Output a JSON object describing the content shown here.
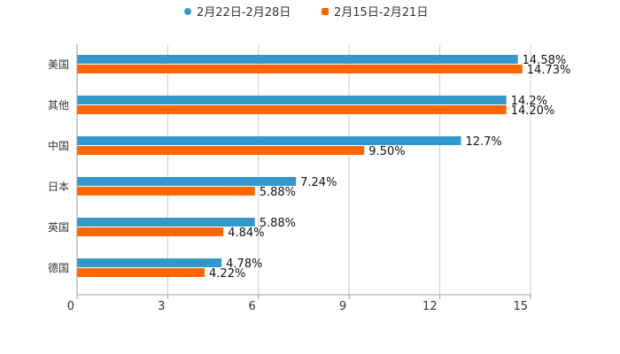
{
  "chart_data": {
    "type": "bar",
    "orientation": "horizontal",
    "categories": [
      "美国",
      "其他",
      "中国",
      "日本",
      "英国",
      "德国"
    ],
    "series": [
      {
        "name": "2月22日-2月28日",
        "color": "#3399cc",
        "values": [
          14.58,
          14.2,
          12.7,
          7.24,
          5.88,
          4.78
        ],
        "labels": [
          "14.58%",
          "14.2%",
          "12.7%",
          "7.24%",
          "5.88%",
          "4.78%"
        ]
      },
      {
        "name": "2月15日-2月21日",
        "color": "#ff6600",
        "values": [
          14.73,
          14.2,
          9.5,
          5.88,
          4.84,
          4.22
        ],
        "labels": [
          "14.73%",
          "14.20%",
          "9.50%",
          "5.88%",
          "4.84%",
          "4.22%"
        ]
      }
    ],
    "xlim": [
      0,
      15
    ],
    "xticks": [
      0,
      3,
      6,
      9,
      12,
      15
    ],
    "grid": true,
    "legend_position": "top"
  }
}
